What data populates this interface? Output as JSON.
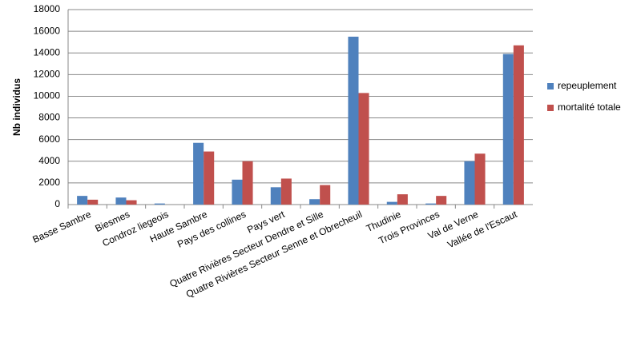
{
  "chart_data": {
    "type": "bar",
    "y_label": "Nb individus",
    "categories": [
      "Basse Sambre",
      "Biesmes",
      "Condroz liegeois",
      "Haute Sambre",
      "Pays des collines",
      "Pays vert",
      "Quatre Rivières Secteur Dendre et Sille",
      "Quatre Rivières Secteur Senne et Obrecheuil",
      "Thudinie",
      "Trois Provinces",
      "Val de Verne",
      "Vallée de l'Escaut"
    ],
    "series": [
      {
        "name": "repeuplement",
        "color": "#4f81bd",
        "values": [
          800,
          650,
          100,
          5700,
          2300,
          1600,
          500,
          15500,
          250,
          100,
          4000,
          13900
        ]
      },
      {
        "name": "mortalité totale",
        "color": "#c0504d",
        "values": [
          450,
          400,
          0,
          4900,
          4000,
          2400,
          1800,
          10300,
          950,
          800,
          4700,
          14700
        ]
      }
    ],
    "ylim": [
      0,
      18000
    ],
    "yticks": [
      0,
      2000,
      4000,
      6000,
      8000,
      10000,
      12000,
      14000,
      16000,
      18000
    ],
    "grid": true,
    "legend": "right"
  }
}
